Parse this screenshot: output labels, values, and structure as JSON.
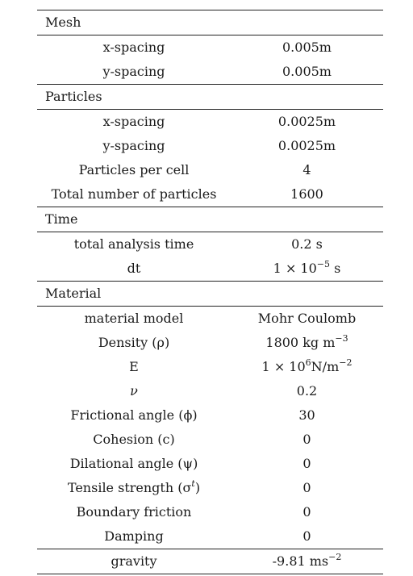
{
  "sections": [
    {
      "title": "Mesh",
      "rows": [
        {
          "label": "x-spacing",
          "value": "0.005m"
        },
        {
          "label": "y-spacing",
          "value": "0.005m"
        }
      ]
    },
    {
      "title": "Particles",
      "rows": [
        {
          "label": "x-spacing",
          "value": "0.0025m"
        },
        {
          "label": "y-spacing",
          "value": "0.0025m"
        },
        {
          "label": "Particles per cell",
          "value": "4"
        },
        {
          "label": "Total number of particles",
          "value": "1600"
        }
      ]
    },
    {
      "title": "Time",
      "rows": [
        {
          "label": "total analysis time",
          "value": "0.2 s"
        },
        {
          "label": "dt",
          "value_base": "1 × 10",
          "value_sup": "−5",
          "value_unit": " s"
        }
      ]
    },
    {
      "title": "Material",
      "rows": [
        {
          "label": "material model",
          "value": "Mohr Coulomb"
        },
        {
          "label": "Density (ρ)",
          "value_base": "1800 kg m",
          "value_sup": "−3",
          "value_unit": ""
        },
        {
          "label": "E",
          "value_base": "1 × 10",
          "value_sup": "6",
          "value_unit": "N/m",
          "value_sup2": "−2"
        },
        {
          "label": "ν",
          "value": "0.2"
        },
        {
          "label": "Frictional angle (ϕ)",
          "value": "30"
        },
        {
          "label": "Cohesion (c)",
          "value": "0"
        },
        {
          "label": "Dilational angle (ψ)",
          "value": "0"
        },
        {
          "label": "Tensile strength (σ",
          "label_sup": "t",
          "label_tail": ")",
          "value": "0"
        },
        {
          "label": "Boundary friction",
          "value": "0"
        },
        {
          "label": "Damping",
          "value": "0"
        }
      ]
    }
  ],
  "footer": {
    "label": "gravity",
    "value_base": "-9.81 ms",
    "value_sup": "−2"
  }
}
